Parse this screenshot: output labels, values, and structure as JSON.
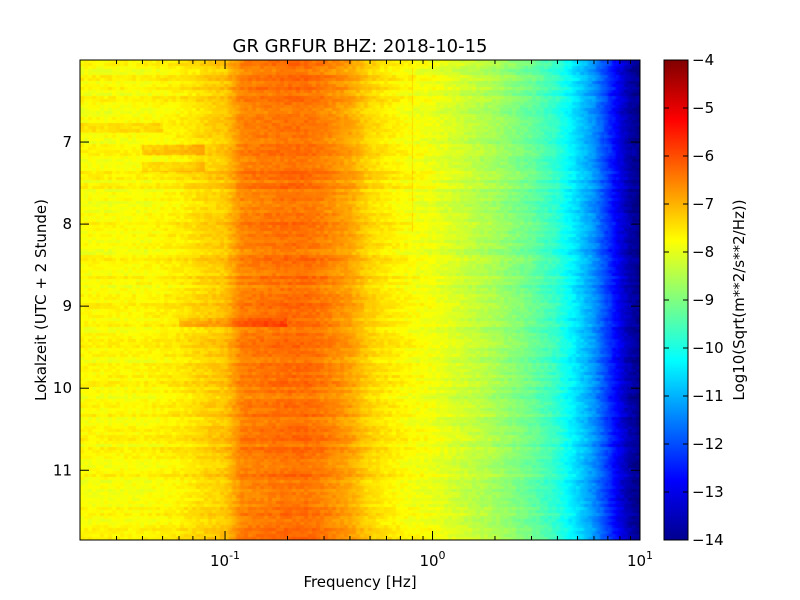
{
  "chart_data": {
    "type": "heatmap",
    "title": "GR GRFUR BHZ: 2018-10-15",
    "xlabel": "Frequency [Hz]",
    "ylabel": "Lokalzeit (UTC + 2 Stunde)",
    "xscale": "log",
    "xlim": [
      0.02,
      10
    ],
    "ylim": [
      11.85,
      6.0
    ],
    "x_ticks": [
      {
        "value": 0.1,
        "base": "10",
        "exp": "-1"
      },
      {
        "value": 1,
        "base": "10",
        "exp": "0"
      },
      {
        "value": 10,
        "base": "10",
        "exp": "1"
      }
    ],
    "y_ticks": [
      7,
      8,
      9,
      10,
      11
    ],
    "colorbar": {
      "label": "Log10(Sqrt(m**2/s**2/Hz))",
      "colormap": "jet",
      "range": [
        -14,
        -4
      ],
      "ticks": [
        -4,
        -5,
        -6,
        -7,
        -8,
        -9,
        -10,
        -11,
        -12,
        -13,
        -14
      ]
    },
    "spectrum_profile": {
      "frequency_hz": [
        0.02,
        0.04,
        0.06,
        0.08,
        0.1,
        0.12,
        0.15,
        0.2,
        0.25,
        0.3,
        0.4,
        0.5,
        0.6,
        0.8,
        1.0,
        1.5,
        2.0,
        3.0,
        4.0,
        5.0,
        6.0,
        7.0,
        8.0,
        9.0,
        10.0
      ],
      "log10_amplitude": [
        -7.75,
        -7.75,
        -7.6,
        -7.35,
        -7.2,
        -6.55,
        -6.45,
        -6.35,
        -6.35,
        -6.5,
        -6.85,
        -7.35,
        -7.55,
        -7.8,
        -7.9,
        -8.3,
        -8.6,
        -9.2,
        -9.8,
        -10.6,
        -11.3,
        -12.2,
        -13.0,
        -13.6,
        -13.9
      ]
    },
    "time_features": [
      {
        "time": 7.1,
        "freq_range": [
          0.04,
          0.08
        ],
        "delta": 0.4
      },
      {
        "time": 7.3,
        "freq_range": [
          0.04,
          0.08
        ],
        "delta": 0.3
      },
      {
        "time": 9.2,
        "freq_range": [
          0.06,
          0.2
        ],
        "delta": 0.4
      },
      {
        "time": 6.83,
        "freq_range": [
          0.02,
          0.05
        ],
        "delta": 0.3
      }
    ],
    "spectral_lines": [
      {
        "frequency": 0.8,
        "time_range": [
          6.1,
          8.1
        ],
        "delta": 0.45
      }
    ]
  }
}
